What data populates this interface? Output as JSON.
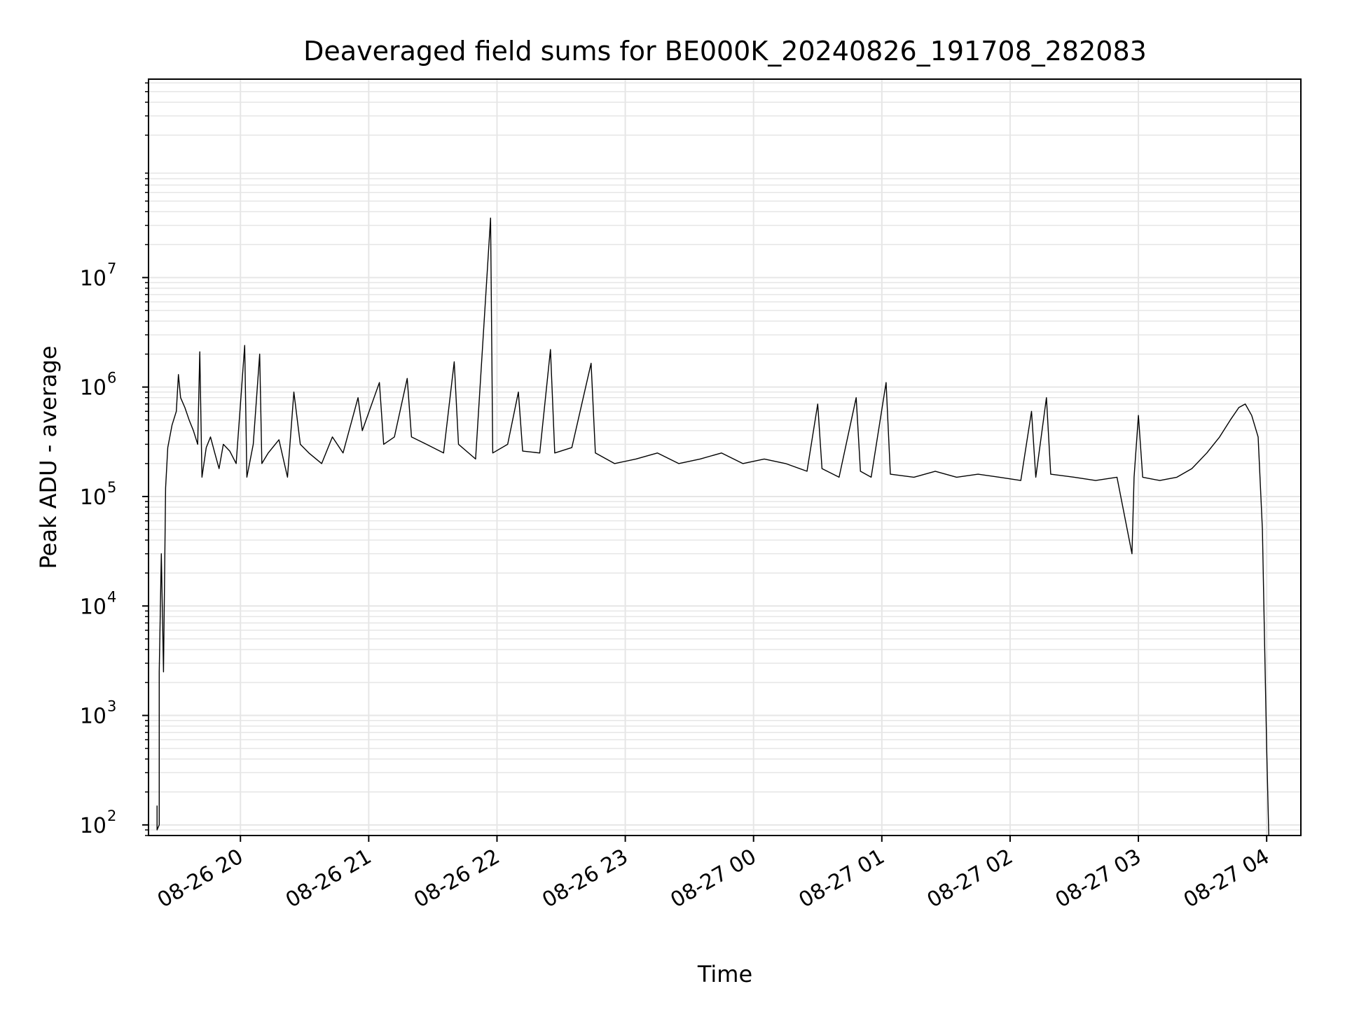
{
  "chart_data": {
    "type": "line",
    "title": "Deaveraged field sums for BE000K_20240826_191708_282083",
    "xlabel": "Time",
    "ylabel": "Peak ADU - average",
    "y_scale": "log",
    "ylim": [
      80,
      650000000
    ],
    "xlim": [
      "2024-08-26 19:17",
      "2024-08-27 04:16"
    ],
    "x_ticks": [
      {
        "label": "08-26 20",
        "t": "2024-08-26 20:00"
      },
      {
        "label": "08-26 21",
        "t": "2024-08-26 21:00"
      },
      {
        "label": "08-26 22",
        "t": "2024-08-26 22:00"
      },
      {
        "label": "08-26 23",
        "t": "2024-08-26 23:00"
      },
      {
        "label": "08-27 00",
        "t": "2024-08-27 00:00"
      },
      {
        "label": "08-27 01",
        "t": "2024-08-27 01:00"
      },
      {
        "label": "08-27 02",
        "t": "2024-08-27 02:00"
      },
      {
        "label": "08-27 03",
        "t": "2024-08-27 03:00"
      },
      {
        "label": "08-27 04",
        "t": "2024-08-27 04:00"
      }
    ],
    "y_ticks": [
      {
        "base": "10",
        "exp": "2",
        "value": 100
      },
      {
        "base": "10",
        "exp": "3",
        "value": 1000
      },
      {
        "base": "10",
        "exp": "4",
        "value": 10000
      },
      {
        "base": "10",
        "exp": "5",
        "value": 100000
      },
      {
        "base": "10",
        "exp": "6",
        "value": 1000000
      },
      {
        "base": "10",
        "exp": "7",
        "value": 10000000
      }
    ],
    "grid": true,
    "legend": "none",
    "line_color": "#000000",
    "grid_color": "#e6e6e6",
    "series": [
      {
        "points": [
          [
            "2024-08-26 19:21",
            150
          ],
          [
            "2024-08-26 19:21",
            90
          ],
          [
            "2024-08-26 19:22",
            100
          ],
          [
            "2024-08-26 19:22",
            2500
          ],
          [
            "2024-08-26 19:23",
            30000
          ],
          [
            "2024-08-26 19:24",
            2500
          ],
          [
            "2024-08-26 19:25",
            120000
          ],
          [
            "2024-08-26 19:26",
            280000
          ],
          [
            "2024-08-26 19:28",
            450000
          ],
          [
            "2024-08-26 19:30",
            600000
          ],
          [
            "2024-08-26 19:31",
            1300000
          ],
          [
            "2024-08-26 19:32",
            800000
          ],
          [
            "2024-08-26 19:34",
            650000
          ],
          [
            "2024-08-26 19:36",
            500000
          ],
          [
            "2024-08-26 19:38",
            400000
          ],
          [
            "2024-08-26 19:40",
            300000
          ],
          [
            "2024-08-26 19:41",
            2100000
          ],
          [
            "2024-08-26 19:42",
            150000
          ],
          [
            "2024-08-26 19:44",
            280000
          ],
          [
            "2024-08-26 19:46",
            350000
          ],
          [
            "2024-08-26 19:48",
            250000
          ],
          [
            "2024-08-26 19:50",
            180000
          ],
          [
            "2024-08-26 19:52",
            300000
          ],
          [
            "2024-08-26 19:55",
            260000
          ],
          [
            "2024-08-26 19:58",
            200000
          ],
          [
            "2024-08-26 20:02",
            2400000
          ],
          [
            "2024-08-26 20:03",
            150000
          ],
          [
            "2024-08-26 20:06",
            300000
          ],
          [
            "2024-08-26 20:09",
            2000000
          ],
          [
            "2024-08-26 20:10",
            200000
          ],
          [
            "2024-08-26 20:13",
            250000
          ],
          [
            "2024-08-26 20:18",
            330000
          ],
          [
            "2024-08-26 20:22",
            150000
          ],
          [
            "2024-08-26 20:25",
            900000
          ],
          [
            "2024-08-26 20:28",
            300000
          ],
          [
            "2024-08-26 20:32",
            250000
          ],
          [
            "2024-08-26 20:38",
            200000
          ],
          [
            "2024-08-26 20:43",
            350000
          ],
          [
            "2024-08-26 20:48",
            250000
          ],
          [
            "2024-08-26 20:55",
            800000
          ],
          [
            "2024-08-26 20:57",
            400000
          ],
          [
            "2024-08-26 21:05",
            1100000
          ],
          [
            "2024-08-26 21:07",
            300000
          ],
          [
            "2024-08-26 21:12",
            350000
          ],
          [
            "2024-08-26 21:18",
            1200000
          ],
          [
            "2024-08-26 21:20",
            350000
          ],
          [
            "2024-08-26 21:27",
            300000
          ],
          [
            "2024-08-26 21:35",
            250000
          ],
          [
            "2024-08-26 21:40",
            1700000
          ],
          [
            "2024-08-26 21:42",
            300000
          ],
          [
            "2024-08-26 21:50",
            220000
          ],
          [
            "2024-08-26 21:57",
            35000000
          ],
          [
            "2024-08-26 21:58",
            250000
          ],
          [
            "2024-08-26 22:05",
            300000
          ],
          [
            "2024-08-26 22:10",
            900000
          ],
          [
            "2024-08-26 22:12",
            260000
          ],
          [
            "2024-08-26 22:20",
            250000
          ],
          [
            "2024-08-26 22:25",
            2200000
          ],
          [
            "2024-08-26 22:27",
            250000
          ],
          [
            "2024-08-26 22:35",
            280000
          ],
          [
            "2024-08-26 22:44",
            1650000
          ],
          [
            "2024-08-26 22:46",
            250000
          ],
          [
            "2024-08-26 22:55",
            200000
          ],
          [
            "2024-08-26 23:05",
            220000
          ],
          [
            "2024-08-26 23:15",
            250000
          ],
          [
            "2024-08-26 23:25",
            200000
          ],
          [
            "2024-08-26 23:35",
            220000
          ],
          [
            "2024-08-26 23:45",
            250000
          ],
          [
            "2024-08-26 23:55",
            200000
          ],
          [
            "2024-08-27 00:05",
            220000
          ],
          [
            "2024-08-27 00:15",
            200000
          ],
          [
            "2024-08-27 00:25",
            170000
          ],
          [
            "2024-08-27 00:30",
            700000
          ],
          [
            "2024-08-27 00:32",
            180000
          ],
          [
            "2024-08-27 00:40",
            150000
          ],
          [
            "2024-08-27 00:48",
            800000
          ],
          [
            "2024-08-27 00:50",
            170000
          ],
          [
            "2024-08-27 00:55",
            150000
          ],
          [
            "2024-08-27 01:02",
            1100000
          ],
          [
            "2024-08-27 01:04",
            160000
          ],
          [
            "2024-08-27 01:15",
            150000
          ],
          [
            "2024-08-27 01:25",
            170000
          ],
          [
            "2024-08-27 01:35",
            150000
          ],
          [
            "2024-08-27 01:45",
            160000
          ],
          [
            "2024-08-27 01:55",
            150000
          ],
          [
            "2024-08-27 02:05",
            140000
          ],
          [
            "2024-08-27 02:10",
            600000
          ],
          [
            "2024-08-27 02:12",
            150000
          ],
          [
            "2024-08-27 02:17",
            800000
          ],
          [
            "2024-08-27 02:19",
            160000
          ],
          [
            "2024-08-27 02:30",
            150000
          ],
          [
            "2024-08-27 02:40",
            140000
          ],
          [
            "2024-08-27 02:50",
            150000
          ],
          [
            "2024-08-27 02:57",
            30000
          ],
          [
            "2024-08-27 02:58",
            150000
          ],
          [
            "2024-08-27 03:00",
            550000
          ],
          [
            "2024-08-27 03:02",
            150000
          ],
          [
            "2024-08-27 03:10",
            140000
          ],
          [
            "2024-08-27 03:18",
            150000
          ],
          [
            "2024-08-27 03:25",
            180000
          ],
          [
            "2024-08-27 03:32",
            250000
          ],
          [
            "2024-08-27 03:38",
            350000
          ],
          [
            "2024-08-27 03:43",
            500000
          ],
          [
            "2024-08-27 03:47",
            650000
          ],
          [
            "2024-08-27 03:50",
            700000
          ],
          [
            "2024-08-27 03:53",
            550000
          ],
          [
            "2024-08-27 03:56",
            350000
          ],
          [
            "2024-08-27 03:58",
            50000
          ],
          [
            "2024-08-27 03:59",
            5000
          ],
          [
            "2024-08-27 04:00",
            500
          ],
          [
            "2024-08-27 04:01",
            80
          ]
        ]
      }
    ]
  }
}
